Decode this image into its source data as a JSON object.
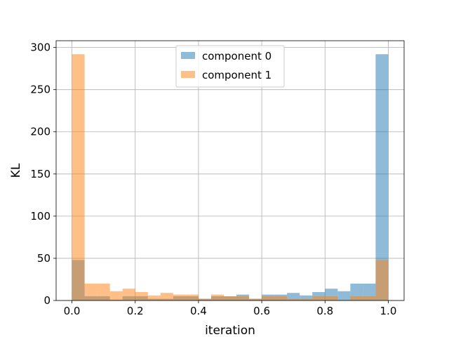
{
  "chart_data": {
    "type": "bar",
    "subtype": "overlaid-histogram",
    "xlabel": "iteration",
    "ylabel": "KL",
    "xlim": [
      -0.05,
      1.05
    ],
    "ylim": [
      0,
      308
    ],
    "xticks": [
      0.0,
      0.2,
      0.4,
      0.6,
      0.8,
      1.0
    ],
    "xtick_labels": [
      "0.0",
      "0.2",
      "0.4",
      "0.6",
      "0.8",
      "1.0"
    ],
    "yticks": [
      0,
      50,
      100,
      150,
      200,
      250,
      300
    ],
    "ytick_labels": [
      "0",
      "50",
      "100",
      "150",
      "200",
      "250",
      "300"
    ],
    "grid": true,
    "legend_position": "top-center",
    "bin_edges": [
      0.0,
      0.04,
      0.08,
      0.12,
      0.16,
      0.2,
      0.24,
      0.28,
      0.32,
      0.36,
      0.4,
      0.44,
      0.48,
      0.52,
      0.56,
      0.6,
      0.64,
      0.68,
      0.72,
      0.76,
      0.8,
      0.84,
      0.88,
      0.92,
      0.96,
      1.0
    ],
    "series": [
      {
        "name": "component 0",
        "color": "#1f77b4",
        "opacity": 0.5,
        "values": [
          48,
          5,
          5,
          1,
          5,
          5,
          2,
          2,
          5,
          5,
          2,
          5,
          5,
          7,
          2,
          7,
          7,
          9,
          6,
          10,
          14,
          11,
          20,
          20,
          292
        ]
      },
      {
        "name": "component 1",
        "color": "#ff7f0e",
        "opacity": 0.5,
        "values": [
          292,
          20,
          20,
          11,
          14,
          10,
          6,
          9,
          7,
          7,
          2,
          7,
          5,
          5,
          2,
          5,
          5,
          2,
          2,
          5,
          5,
          1,
          5,
          5,
          48
        ]
      }
    ]
  }
}
